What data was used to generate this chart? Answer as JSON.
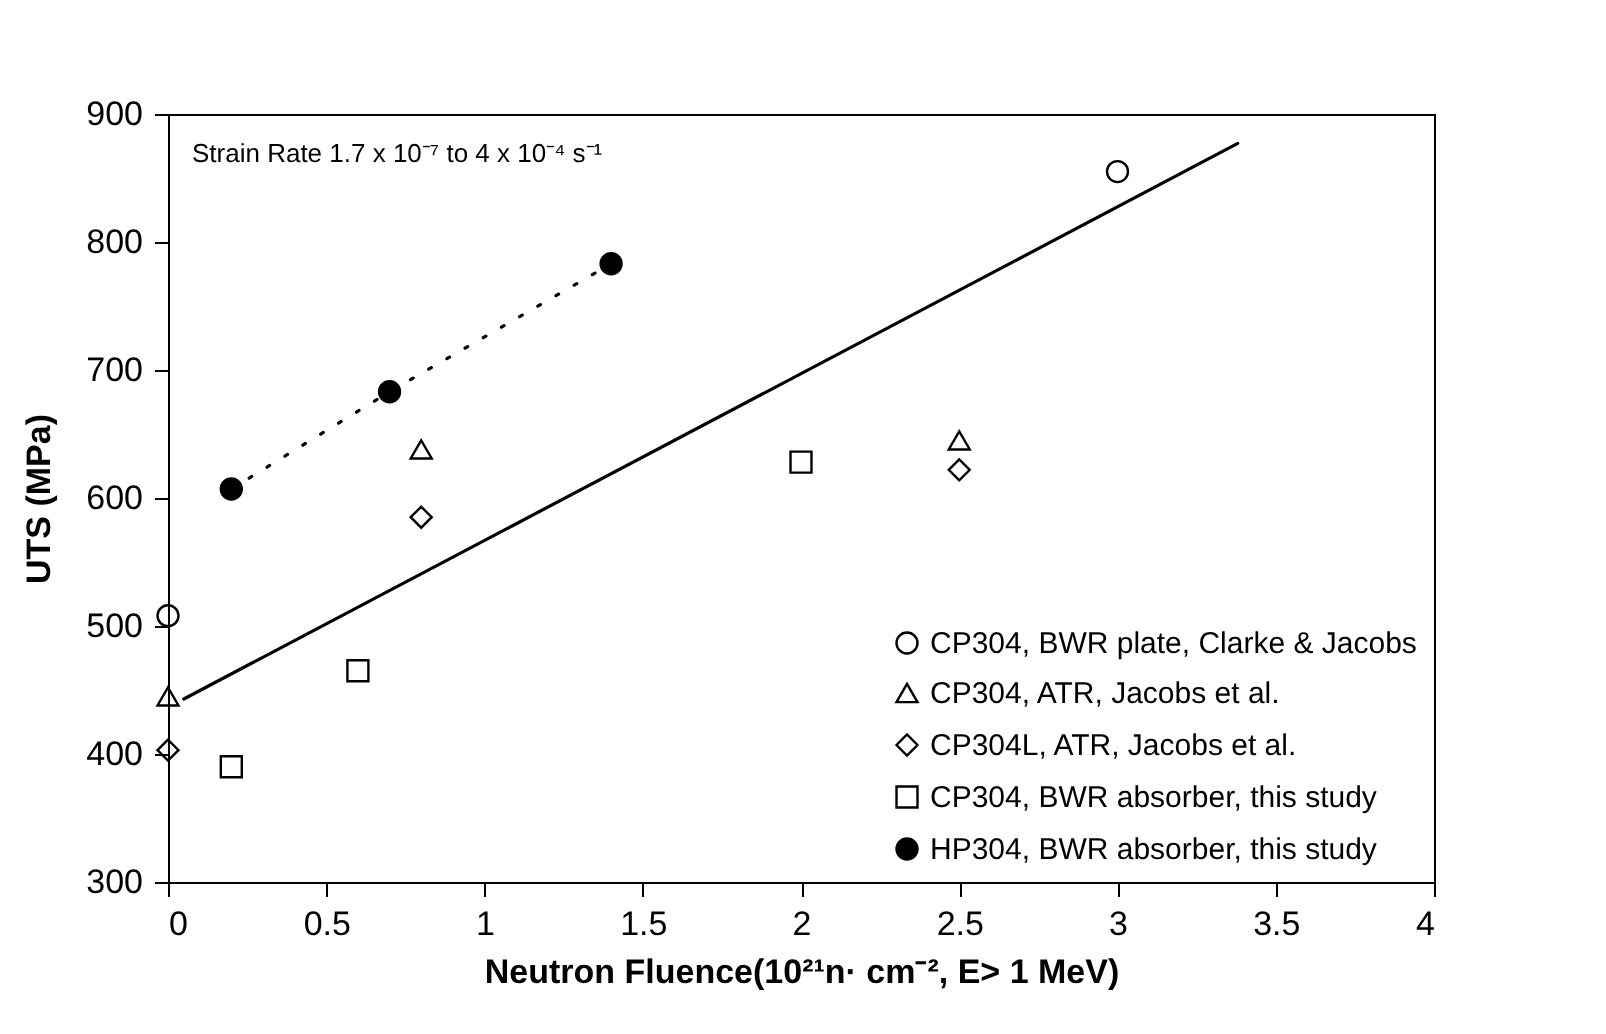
{
  "chart_data": {
    "type": "scatter",
    "xlabel": "Neutron Fluence(10²¹n· cm⁻², E> 1 MeV)",
    "ylabel": "UTS  (MPa)",
    "annotations": [
      "Strain Rate 1.7 x 10⁻⁷ to 4 x 10⁻⁴ s⁻¹"
    ],
    "xlim": [
      0,
      4
    ],
    "xticks": [
      0,
      0.5,
      1,
      1.5,
      2,
      2.5,
      3,
      3.5,
      4
    ],
    "ylim": [
      300,
      900
    ],
    "yticks": [
      300,
      400,
      500,
      600,
      700,
      800,
      900
    ],
    "grid": false,
    "legend": "bottom right",
    "series": [
      {
        "name": "CP304, BWR plate, Clarke & Jacobs",
        "marker": "circle",
        "color": "#000000",
        "x": [
          0,
          3
        ],
        "values": [
          508,
          855
        ]
      },
      {
        "name": "CP304, ATR, Jacobs et al.",
        "marker": "triangle",
        "color": "#000000",
        "x": [
          0,
          0.8,
          2.5
        ],
        "values": [
          445,
          638,
          645
        ]
      },
      {
        "name": "CP304L, ATR, Jacobs et al.",
        "marker": "diamond",
        "color": "#000000",
        "x": [
          0,
          0.8,
          2.5
        ],
        "values": [
          403,
          585,
          622
        ]
      },
      {
        "name": "CP304, BWR absorber, this study",
        "marker": "square",
        "color": "#000000",
        "x": [
          0.2,
          0.6,
          2
        ],
        "values": [
          390,
          465,
          628
        ]
      },
      {
        "name": "HP304, BWR absorber, this study",
        "type": "line",
        "marker": "circle",
        "line_style": "dotted",
        "color": "#000000",
        "x": [
          0.2,
          0.7,
          1.4
        ],
        "values": [
          607,
          683,
          783
        ]
      },
      {
        "type": "line",
        "marker": "none",
        "line_style": "solid",
        "color": "#000000",
        "x": [
          0.05,
          3.38
        ],
        "values": [
          443,
          877
        ]
      }
    ]
  }
}
